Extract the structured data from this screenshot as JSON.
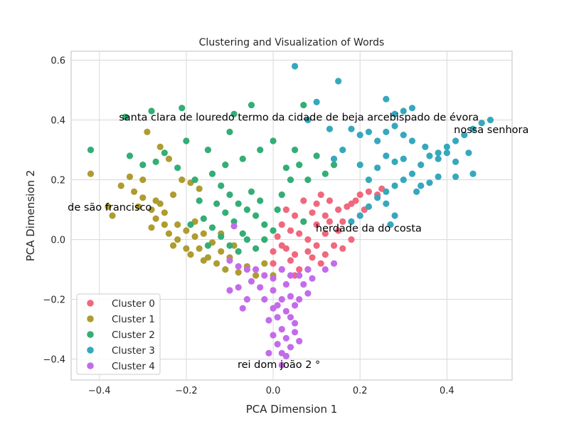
{
  "chart_data": {
    "type": "scatter",
    "title": "Clustering and Visualization of Words",
    "xlabel": "PCA Dimension 1",
    "ylabel": "PCA Dimension 2",
    "xlim": [
      -0.465,
      0.55
    ],
    "ylim": [
      -0.47,
      0.63
    ],
    "xticks": [
      -0.4,
      -0.2,
      0.0,
      0.2,
      0.4
    ],
    "xtick_labels": [
      "−0.4",
      "−0.2",
      "0.0",
      "0.2",
      "0.4"
    ],
    "yticks": [
      -0.4,
      -0.2,
      0.0,
      0.2,
      0.4,
      0.6
    ],
    "ytick_labels": [
      "−0.4",
      "−0.2",
      "0.0",
      "0.2",
      "0.4",
      "0.6"
    ],
    "grid": true,
    "legend_position": "lower-left",
    "series": [
      {
        "name": "Cluster 0",
        "color": "#f0687e",
        "points": [
          [
            0.02,
            -0.02
          ],
          [
            0.05,
            -0.05
          ],
          [
            0.0,
            -0.08
          ],
          [
            0.08,
            0.0
          ],
          [
            0.1,
            0.05
          ],
          [
            0.12,
            0.08
          ],
          [
            0.15,
            0.1
          ],
          [
            0.18,
            0.12
          ],
          [
            0.2,
            0.15
          ],
          [
            0.22,
            0.16
          ],
          [
            0.24,
            0.15
          ],
          [
            0.25,
            0.17
          ],
          [
            0.1,
            0.12
          ],
          [
            0.12,
            0.02
          ],
          [
            0.06,
            -0.1
          ],
          [
            0.04,
            0.03
          ],
          [
            -0.02,
            0.0
          ],
          [
            0.03,
            -0.03
          ],
          [
            0.07,
            0.06
          ],
          [
            0.09,
            -0.06
          ],
          [
            0.13,
            0.13
          ],
          [
            0.16,
            0.06
          ],
          [
            0.18,
            0.0
          ],
          [
            0.2,
            0.08
          ],
          [
            0.14,
            -0.02
          ],
          [
            0.11,
            -0.08
          ],
          [
            0.08,
            -0.1
          ],
          [
            0.05,
            0.08
          ],
          [
            0.02,
            0.05
          ],
          [
            0.0,
            -0.04
          ],
          [
            0.06,
            0.02
          ],
          [
            0.1,
            -0.02
          ],
          [
            0.13,
            0.06
          ],
          [
            0.17,
            0.11
          ],
          [
            0.19,
            0.13
          ],
          [
            0.21,
            0.1
          ],
          [
            0.15,
            0.03
          ],
          [
            0.09,
            0.09
          ],
          [
            0.04,
            -0.07
          ],
          [
            0.01,
            0.01
          ],
          [
            0.03,
            0.1
          ],
          [
            0.07,
            0.13
          ],
          [
            0.11,
            0.15
          ],
          [
            0.12,
            -0.05
          ],
          [
            0.16,
            -0.03
          ],
          [
            0.08,
            -0.04
          ],
          [
            0.05,
            -0.12
          ],
          [
            0.02,
            -0.1
          ]
        ]
      },
      {
        "name": "Cluster 1",
        "color": "#ad9c30",
        "points": [
          [
            -0.42,
            0.22
          ],
          [
            -0.38,
            0.11
          ],
          [
            -0.37,
            0.08
          ],
          [
            -0.33,
            0.21
          ],
          [
            -0.32,
            0.16
          ],
          [
            -0.3,
            0.14
          ],
          [
            -0.29,
            0.36
          ],
          [
            -0.28,
            0.1
          ],
          [
            -0.27,
            0.07
          ],
          [
            -0.26,
            0.12
          ],
          [
            -0.25,
            0.05
          ],
          [
            -0.24,
            0.02
          ],
          [
            -0.23,
            -0.02
          ],
          [
            -0.22,
            0.0
          ],
          [
            -0.2,
            0.03
          ],
          [
            -0.19,
            -0.05
          ],
          [
            -0.18,
            0.06
          ],
          [
            -0.17,
            -0.03
          ],
          [
            -0.16,
            0.02
          ],
          [
            -0.15,
            -0.06
          ],
          [
            -0.14,
            -0.01
          ],
          [
            -0.13,
            -0.08
          ],
          [
            -0.12,
            -0.04
          ],
          [
            -0.11,
            -0.1
          ],
          [
            -0.26,
            0.31
          ],
          [
            -0.24,
            0.27
          ],
          [
            -0.21,
            0.2
          ],
          [
            -0.19,
            0.19
          ],
          [
            -0.17,
            0.17
          ],
          [
            -0.23,
            0.15
          ],
          [
            -0.28,
            0.04
          ],
          [
            -0.3,
            0.2
          ],
          [
            -0.35,
            0.18
          ],
          [
            -0.31,
            0.11
          ],
          [
            -0.27,
            0.13
          ],
          [
            -0.25,
            0.09
          ],
          [
            -0.22,
            0.05
          ],
          [
            -0.2,
            -0.03
          ],
          [
            -0.16,
            -0.07
          ],
          [
            -0.1,
            -0.06
          ],
          [
            -0.08,
            -0.11
          ],
          [
            -0.06,
            -0.09
          ],
          [
            -0.04,
            -0.12
          ],
          [
            -0.02,
            -0.08
          ],
          [
            0.0,
            -0.12
          ],
          [
            -0.18,
            0.01
          ],
          [
            -0.12,
            0.02
          ],
          [
            -0.09,
            -0.02
          ]
        ]
      },
      {
        "name": "Cluster 2",
        "color": "#33ae75",
        "points": [
          [
            -0.42,
            0.3
          ],
          [
            -0.34,
            0.41
          ],
          [
            -0.28,
            0.43
          ],
          [
            -0.21,
            0.44
          ],
          [
            -0.09,
            0.42
          ],
          [
            -0.05,
            0.45
          ],
          [
            0.07,
            0.45
          ],
          [
            -0.1,
            0.36
          ],
          [
            -0.15,
            0.3
          ],
          [
            -0.2,
            0.33
          ],
          [
            -0.25,
            0.29
          ],
          [
            -0.3,
            0.25
          ],
          [
            -0.33,
            0.28
          ],
          [
            -0.27,
            0.26
          ],
          [
            -0.22,
            0.24
          ],
          [
            -0.18,
            0.2
          ],
          [
            -0.14,
            0.22
          ],
          [
            -0.12,
            0.18
          ],
          [
            -0.1,
            0.15
          ],
          [
            -0.08,
            0.12
          ],
          [
            -0.06,
            0.1
          ],
          [
            -0.04,
            0.08
          ],
          [
            -0.02,
            0.05
          ],
          [
            0.0,
            0.03
          ],
          [
            -0.16,
            0.07
          ],
          [
            -0.14,
            0.04
          ],
          [
            -0.12,
            0.01
          ],
          [
            -0.1,
            -0.02
          ],
          [
            -0.08,
            -0.04
          ],
          [
            -0.06,
            0.0
          ],
          [
            -0.04,
            -0.03
          ],
          [
            -0.02,
            0.0
          ],
          [
            0.02,
            0.15
          ],
          [
            0.04,
            0.2
          ],
          [
            0.06,
            0.25
          ],
          [
            0.08,
            0.2
          ],
          [
            0.1,
            0.28
          ],
          [
            0.12,
            0.22
          ],
          [
            0.14,
            0.25
          ],
          [
            0.05,
            0.3
          ],
          [
            0.0,
            0.33
          ],
          [
            -0.03,
            0.3
          ],
          [
            0.03,
            0.24
          ],
          [
            -0.07,
            0.27
          ],
          [
            -0.11,
            0.25
          ],
          [
            -0.13,
            0.12
          ],
          [
            -0.09,
            0.06
          ],
          [
            -0.05,
            0.16
          ],
          [
            0.01,
            0.1
          ],
          [
            0.07,
            0.06
          ],
          [
            -0.17,
            0.13
          ],
          [
            -0.19,
            0.05
          ],
          [
            -0.15,
            -0.02
          ],
          [
            -0.11,
            0.09
          ],
          [
            -0.07,
            0.02
          ],
          [
            -0.03,
            0.13
          ]
        ]
      },
      {
        "name": "Cluster 3",
        "color": "#36a8bd",
        "points": [
          [
            0.05,
            0.58
          ],
          [
            0.15,
            0.53
          ],
          [
            0.1,
            0.46
          ],
          [
            0.26,
            0.47
          ],
          [
            0.28,
            0.42
          ],
          [
            0.3,
            0.43
          ],
          [
            0.32,
            0.44
          ],
          [
            0.08,
            0.4
          ],
          [
            0.13,
            0.37
          ],
          [
            0.18,
            0.37
          ],
          [
            0.2,
            0.35
          ],
          [
            0.22,
            0.36
          ],
          [
            0.24,
            0.33
          ],
          [
            0.26,
            0.36
          ],
          [
            0.28,
            0.38
          ],
          [
            0.3,
            0.35
          ],
          [
            0.32,
            0.33
          ],
          [
            0.35,
            0.31
          ],
          [
            0.38,
            0.29
          ],
          [
            0.4,
            0.31
          ],
          [
            0.42,
            0.33
          ],
          [
            0.44,
            0.35
          ],
          [
            0.46,
            0.37
          ],
          [
            0.48,
            0.39
          ],
          [
            0.5,
            0.4
          ],
          [
            0.45,
            0.29
          ],
          [
            0.42,
            0.26
          ],
          [
            0.4,
            0.29
          ],
          [
            0.38,
            0.27
          ],
          [
            0.36,
            0.28
          ],
          [
            0.34,
            0.25
          ],
          [
            0.32,
            0.22
          ],
          [
            0.3,
            0.2
          ],
          [
            0.28,
            0.18
          ],
          [
            0.26,
            0.16
          ],
          [
            0.24,
            0.14
          ],
          [
            0.22,
            0.11
          ],
          [
            0.2,
            0.08
          ],
          [
            0.18,
            0.06
          ],
          [
            0.22,
            0.2
          ],
          [
            0.24,
            0.24
          ],
          [
            0.26,
            0.28
          ],
          [
            0.28,
            0.26
          ],
          [
            0.3,
            0.27
          ],
          [
            0.34,
            0.18
          ],
          [
            0.36,
            0.19
          ],
          [
            0.33,
            0.16
          ],
          [
            0.26,
            0.12
          ],
          [
            0.28,
            0.08
          ],
          [
            0.38,
            0.21
          ],
          [
            0.42,
            0.21
          ],
          [
            0.46,
            0.22
          ],
          [
            0.16,
            0.3
          ],
          [
            0.14,
            0.27
          ],
          [
            0.2,
            0.25
          ],
          [
            0.27,
            0.05
          ]
        ]
      },
      {
        "name": "Cluster 4",
        "color": "#c36ceb",
        "points": [
          [
            -0.09,
            0.045
          ],
          [
            -0.1,
            -0.07
          ],
          [
            -0.08,
            -0.09
          ],
          [
            -0.06,
            -0.1
          ],
          [
            -0.04,
            -0.1
          ],
          [
            -0.02,
            -0.12
          ],
          [
            0.0,
            -0.13
          ],
          [
            0.02,
            -0.1
          ],
          [
            0.04,
            -0.12
          ],
          [
            0.06,
            -0.12
          ],
          [
            0.08,
            -0.1
          ],
          [
            -0.1,
            -0.17
          ],
          [
            -0.08,
            -0.16
          ],
          [
            -0.05,
            -0.14
          ],
          [
            -0.03,
            -0.16
          ],
          [
            -0.06,
            -0.2
          ],
          [
            -0.07,
            -0.23
          ],
          [
            0.0,
            -0.17
          ],
          [
            0.02,
            -0.2
          ],
          [
            0.03,
            -0.24
          ],
          [
            0.04,
            -0.19
          ],
          [
            0.05,
            -0.22
          ],
          [
            0.01,
            -0.26
          ],
          [
            0.02,
            -0.3
          ],
          [
            0.03,
            -0.33
          ],
          [
            0.04,
            -0.36
          ],
          [
            0.01,
            -0.35
          ],
          [
            0.0,
            -0.32
          ],
          [
            -0.01,
            -0.27
          ],
          [
            0.05,
            -0.28
          ],
          [
            0.06,
            -0.34
          ],
          [
            0.03,
            -0.39
          ],
          [
            0.02,
            -0.42
          ],
          [
            -0.01,
            -0.38
          ],
          [
            0.06,
            -0.2
          ],
          [
            0.08,
            -0.18
          ],
          [
            0.07,
            -0.15
          ],
          [
            0.09,
            -0.13
          ],
          [
            -0.02,
            -0.2
          ],
          [
            0.0,
            -0.23
          ],
          [
            0.04,
            -0.26
          ],
          [
            0.02,
            -0.38
          ],
          [
            0.05,
            -0.31
          ],
          [
            0.03,
            -0.15
          ],
          [
            0.01,
            -0.22
          ],
          [
            0.12,
            -0.1
          ],
          [
            0.14,
            -0.08
          ]
        ]
      }
    ],
    "annotations": [
      {
        "text": "santa clara de louredo termo da cidade de beja arcebispado de évora",
        "x": -0.355,
        "y": 0.41
      },
      {
        "text": "nossa senhora",
        "x": 0.416,
        "y": 0.368
      },
      {
        "text": "de são francisco",
        "x": -0.473,
        "y": 0.108
      },
      {
        "text": "herdade da do costa",
        "x": 0.098,
        "y": 0.038
      },
      {
        "text": "rei dom joão 2 °",
        "x": -0.082,
        "y": -0.418
      }
    ]
  }
}
